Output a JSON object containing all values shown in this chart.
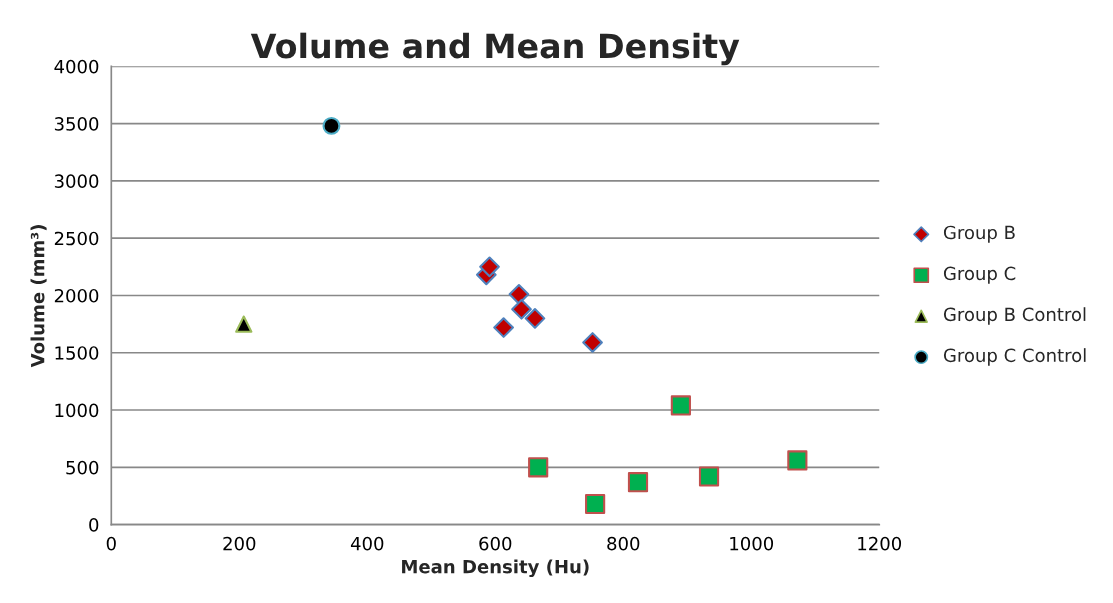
{
  "chart_data": {
    "type": "scatter",
    "title": "Volume and Mean Density",
    "xlabel": "Mean Density (Hu)",
    "ylabel": "Volume (mm³)",
    "xlim": [
      0,
      1200
    ],
    "xticks": [
      0,
      200,
      400,
      600,
      800,
      1000,
      1200
    ],
    "ylim": [
      0,
      4000
    ],
    "yticks": [
      0,
      500,
      1000,
      1500,
      2000,
      2500,
      3000,
      3500,
      4000
    ],
    "grid": "y",
    "legend": "right",
    "series": [
      {
        "name": "Group B",
        "color": "#c00000",
        "marker": "diamond",
        "x": [
          586,
          591,
          637,
          641,
          662,
          613,
          752
        ],
        "values": [
          2180,
          2250,
          2010,
          1880,
          1800,
          1720,
          1590
        ]
      },
      {
        "name": "Group C",
        "color": "#00b050",
        "marker": "square",
        "x": [
          890,
          667,
          823,
          756,
          934,
          1072
        ],
        "values": [
          1040,
          500,
          370,
          180,
          420,
          560
        ]
      },
      {
        "name": "Group B Control",
        "color": "#000000",
        "marker": "triangle",
        "x": [
          207
        ],
        "values": [
          1750
        ]
      },
      {
        "name": "Group C Control",
        "color": "#000000",
        "marker": "circle",
        "x": [
          344
        ],
        "values": [
          3480
        ]
      }
    ]
  }
}
